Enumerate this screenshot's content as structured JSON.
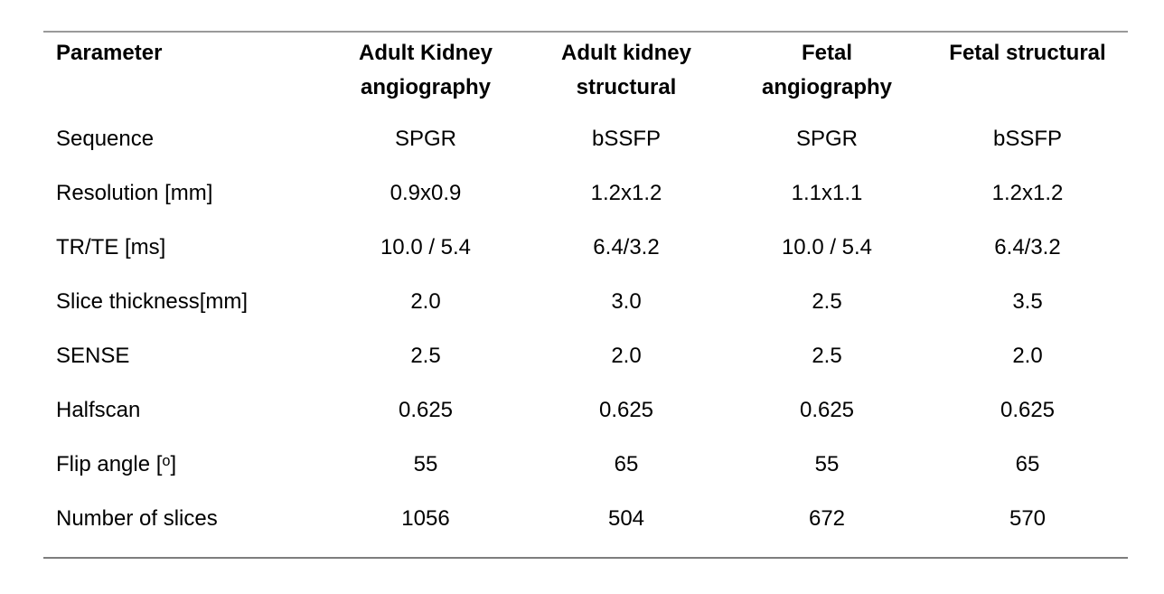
{
  "page": {
    "background_color": "#ffffff",
    "text_color": "#000000"
  },
  "table": {
    "rules": {
      "top_color": "#9a9a9a",
      "bottom_color": "#7d7d7d"
    },
    "columns": [
      {
        "label": "Parameter"
      },
      {
        "label": "Adult Kidney\nangiography"
      },
      {
        "label": "Adult kidney\nstructural"
      },
      {
        "label": "Fetal\nangiography"
      },
      {
        "label": "Fetal structural"
      }
    ],
    "rows": [
      {
        "parameter": "Sequence",
        "values": [
          "SPGR",
          "bSSFP",
          "SPGR",
          "bSSFP"
        ]
      },
      {
        "parameter": "Resolution [mm]",
        "values": [
          "0.9x0.9",
          "1.2x1.2",
          "1.1x1.1",
          "1.2x1.2"
        ]
      },
      {
        "parameter": "TR/TE [ms]",
        "values": [
          "10.0 / 5.4",
          "6.4/3.2",
          "10.0 / 5.4",
          "6.4/3.2"
        ]
      },
      {
        "parameter": "Slice thickness[mm]",
        "values": [
          "2.0",
          "3.0",
          "2.5",
          "3.5"
        ]
      },
      {
        "parameter": "SENSE",
        "values": [
          "2.5",
          "2.0",
          "2.5",
          "2.0"
        ]
      },
      {
        "parameter": "Halfscan",
        "values": [
          "0.625",
          "0.625",
          "0.625",
          "0.625"
        ]
      },
      {
        "parameter": "Flip angle [ᵒ]",
        "values": [
          "55",
          "65",
          "55",
          "65"
        ]
      },
      {
        "parameter": "Number of slices",
        "values": [
          "1056",
          "504",
          "672",
          "570"
        ]
      }
    ]
  }
}
